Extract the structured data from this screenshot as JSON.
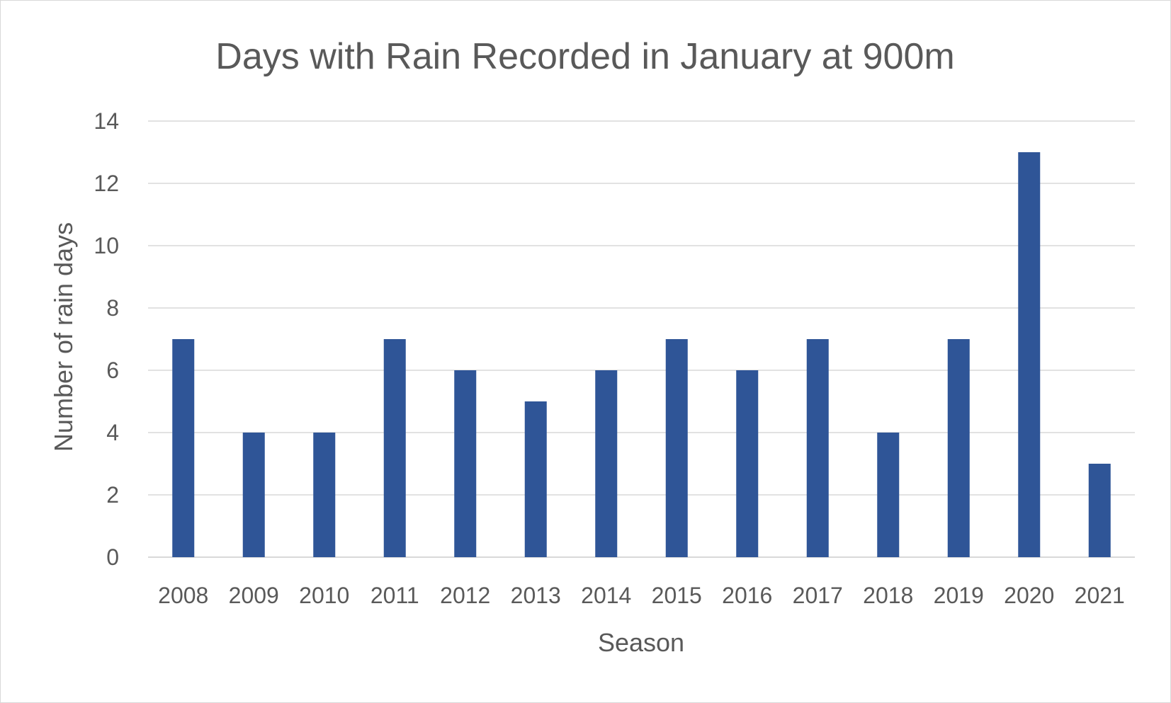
{
  "chart_data": {
    "type": "bar",
    "title": "Days with Rain Recorded in January at 900m",
    "xlabel": "Season",
    "ylabel": "Number of rain days",
    "categories": [
      "2008",
      "2009",
      "2010",
      "2011",
      "2012",
      "2013",
      "2014",
      "2015",
      "2016",
      "2017",
      "2018",
      "2019",
      "2020",
      "2021"
    ],
    "values": [
      7,
      4,
      4,
      7,
      6,
      5,
      6,
      7,
      6,
      7,
      4,
      7,
      13,
      3
    ],
    "ylim": [
      0,
      14
    ],
    "yticks": [
      0,
      2,
      4,
      6,
      8,
      10,
      12,
      14
    ],
    "grid": true,
    "legend": "none",
    "colors": {
      "bar": "#2F5597",
      "grid": "#d9d9d9",
      "text": "#595959"
    }
  }
}
